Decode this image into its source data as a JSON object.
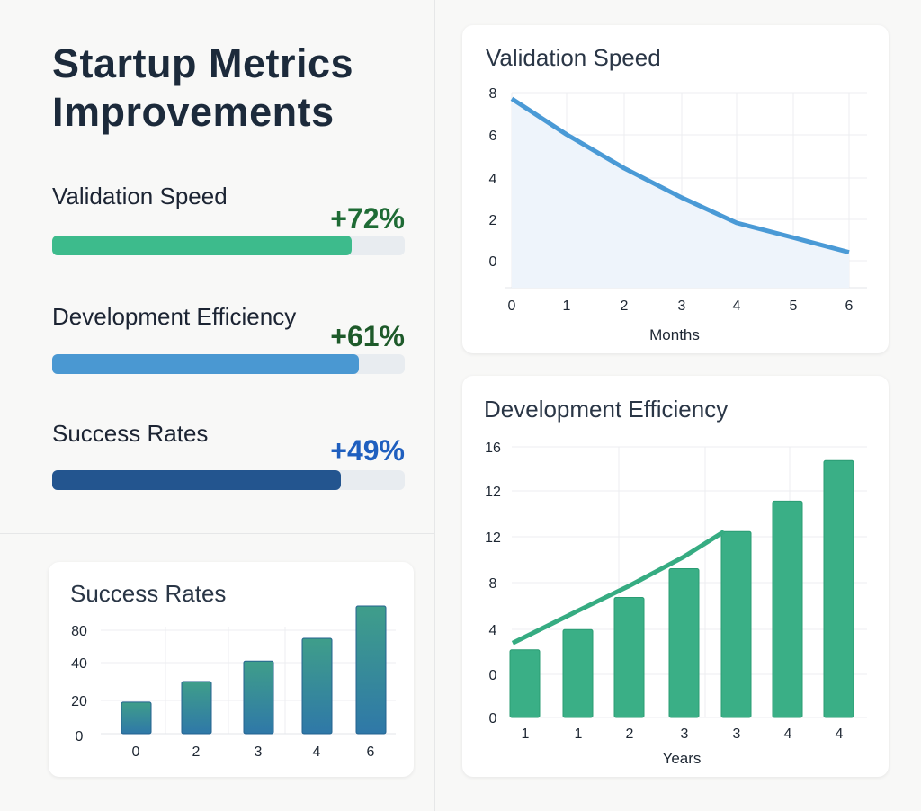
{
  "title": "Startup Metrics Improvements",
  "metrics": [
    {
      "label": "Validation Speed",
      "value": "+72%",
      "fill": 0.85,
      "bar_color": "#3dbb8c",
      "value_color": "#1e6b35"
    },
    {
      "label": "Development Efficiency",
      "value": "+61%",
      "fill": 0.87,
      "bar_color": "#4a98d2",
      "value_color": "#1e5a2a"
    },
    {
      "label": "Success Rates",
      "value": "+49%",
      "fill": 0.82,
      "bar_color": "#23558f",
      "value_color": "#1f5fbf"
    }
  ],
  "chart_data": [
    {
      "type": "area",
      "title": "Validation Speed",
      "xlabel": "Months",
      "ylabel": "",
      "x_ticks": [
        "0",
        "1",
        "2",
        "3",
        "4",
        "5",
        "6"
      ],
      "y_ticks": [
        "8",
        "6",
        "4",
        "2",
        "0"
      ],
      "x": [
        0,
        1,
        2,
        3,
        4,
        5,
        6
      ],
      "values": [
        7.7,
        6.0,
        4.4,
        3.0,
        1.8,
        1.1,
        0.4
      ],
      "ylim": [
        -1.3,
        8
      ],
      "grid": true,
      "color": "#4a9ad6"
    },
    {
      "type": "bar",
      "title": "Development Efficiency",
      "xlabel": "Years",
      "ylabel": "",
      "categories": [
        "1",
        "1",
        "2",
        "3",
        "3",
        "4",
        "4"
      ],
      "y_ticks": [
        "16",
        "12",
        "12",
        "8",
        "4",
        "0",
        "0"
      ],
      "values": [
        4.0,
        5.2,
        7.1,
        8.8,
        11.0,
        12.8,
        15.2
      ],
      "line_values": [
        4.4,
        6.3,
        7.8,
        9.5,
        11.0
      ],
      "ylim": [
        0,
        16
      ],
      "grid": true,
      "color": "#3aaf86"
    },
    {
      "type": "bar",
      "title": "Success Rates",
      "xlabel": "",
      "ylabel": "",
      "categories": [
        "0",
        "2",
        "3",
        "4",
        "6"
      ],
      "y_ticks": [
        "80",
        "40",
        "20",
        "0"
      ],
      "values": [
        19,
        30,
        42,
        70,
        110
      ],
      "grid": true,
      "color": "#2f7aa8"
    }
  ]
}
